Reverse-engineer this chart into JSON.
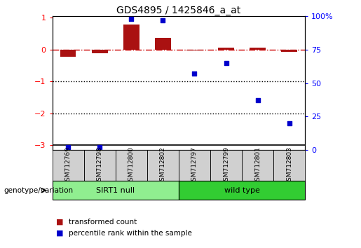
{
  "title": "GDS4895 / 1425846_a_at",
  "samples": [
    "GSM712769",
    "GSM712798",
    "GSM712800",
    "GSM712802",
    "GSM712797",
    "GSM712799",
    "GSM712801",
    "GSM712803"
  ],
  "transformed_count": [
    -0.22,
    -0.12,
    0.78,
    0.37,
    -0.02,
    0.07,
    0.07,
    -0.07
  ],
  "percentile_rank": [
    2,
    2,
    98,
    97,
    57,
    65,
    37,
    20
  ],
  "groups": [
    {
      "label": "SIRT1 null",
      "count": 4,
      "color": "#90EE90"
    },
    {
      "label": "wild type",
      "count": 4,
      "color": "#32CD32"
    }
  ],
  "ylim_left": [
    -3.15,
    1.05
  ],
  "ylim_right": [
    0,
    100
  ],
  "yticks_left": [
    -3,
    -2,
    -1,
    0,
    1
  ],
  "yticks_right": [
    0,
    25,
    50,
    75,
    100
  ],
  "yticklabels_right": [
    "0",
    "25",
    "50",
    "75",
    "100%"
  ],
  "bar_color": "#AA1111",
  "dot_color": "#0000CC",
  "zero_line_color": "#CC0000",
  "dotted_line_color": "#000000",
  "background_color": "#ffffff",
  "legend_items": [
    "transformed count",
    "percentile rank within the sample"
  ],
  "genotype_label": "genotype/variation"
}
